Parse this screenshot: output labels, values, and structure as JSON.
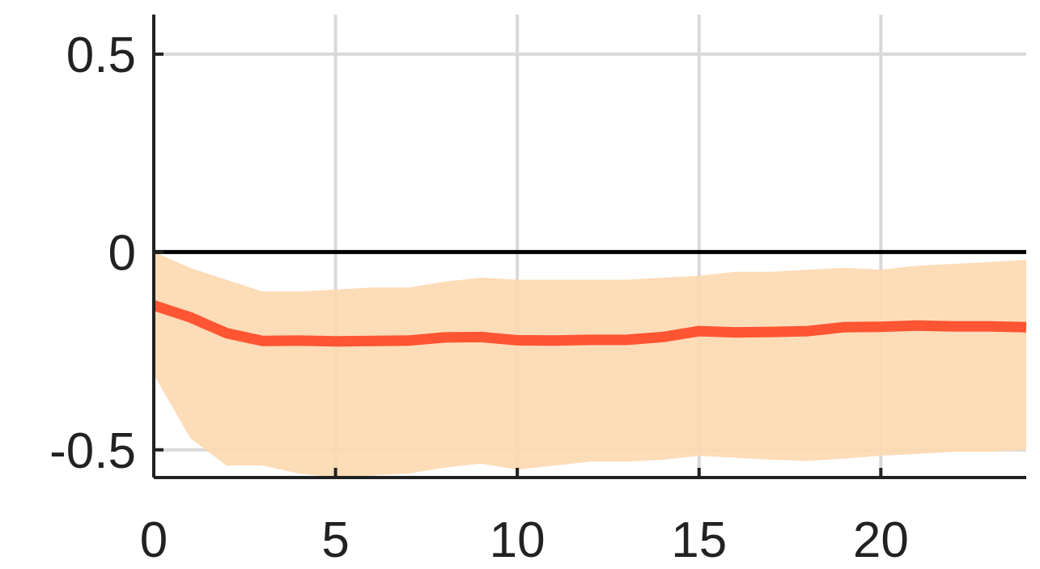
{
  "chart_data": {
    "type": "line",
    "title": "",
    "xlabel": "",
    "ylabel": "",
    "xlim": [
      0,
      24
    ],
    "ylim": [
      -0.57,
      0.6
    ],
    "grid": true,
    "legend": "none",
    "x_ticks": [
      0,
      5,
      10,
      15,
      20
    ],
    "x_tick_labels": [
      "0",
      "5",
      "10",
      "15",
      "20"
    ],
    "y_ticks": [
      0.5,
      0,
      -0.5
    ],
    "y_tick_labels": [
      "0.5",
      "0",
      "-0.5"
    ],
    "zero_line": 0,
    "x": [
      0,
      1,
      2,
      3,
      4,
      5,
      6,
      7,
      8,
      9,
      10,
      11,
      12,
      13,
      14,
      15,
      16,
      17,
      18,
      19,
      20,
      21,
      22,
      23,
      24
    ],
    "series": [
      {
        "values": [
          -0.135,
          -0.165,
          -0.205,
          -0.225,
          -0.224,
          -0.226,
          -0.225,
          -0.224,
          -0.216,
          -0.215,
          -0.223,
          -0.224,
          -0.222,
          -0.222,
          -0.215,
          -0.2,
          -0.203,
          -0.202,
          -0.2,
          -0.19,
          -0.189,
          -0.186,
          -0.188,
          -0.188,
          -0.19
        ],
        "band_upper": [
          0.0,
          -0.04,
          -0.07,
          -0.1,
          -0.1,
          -0.095,
          -0.09,
          -0.09,
          -0.075,
          -0.065,
          -0.07,
          -0.07,
          -0.07,
          -0.07,
          -0.065,
          -0.06,
          -0.05,
          -0.05,
          -0.045,
          -0.04,
          -0.045,
          -0.035,
          -0.03,
          -0.025,
          -0.02
        ],
        "band_lower": [
          -0.31,
          -0.47,
          -0.54,
          -0.54,
          -0.56,
          -0.57,
          -0.565,
          -0.56,
          -0.545,
          -0.535,
          -0.55,
          -0.54,
          -0.53,
          -0.53,
          -0.525,
          -0.515,
          -0.52,
          -0.525,
          -0.528,
          -0.522,
          -0.515,
          -0.51,
          -0.505,
          -0.505,
          -0.5
        ]
      }
    ],
    "colors": {
      "line": "#FF5533",
      "band": "#FDD8B0",
      "grid": "#D9D9D9",
      "axis": "#222222",
      "zero_line": "#000000"
    }
  }
}
